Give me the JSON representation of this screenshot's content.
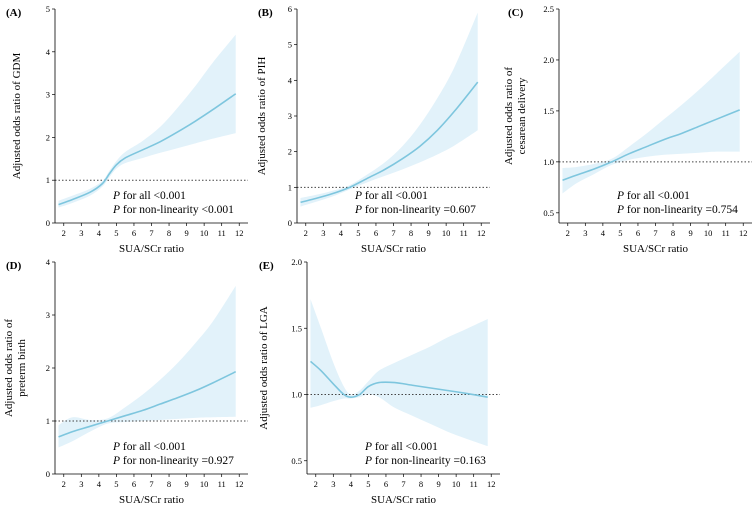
{
  "figure": {
    "curve_color": "#7ec6de",
    "band_color": "#e2f2fa",
    "ref_color": "#444444"
  },
  "chart_data": [
    {
      "id": "A",
      "panel_label": "(A)",
      "type": "line",
      "ylabel": "Adjusted odds ratio of GDM",
      "ylabel_lines": [
        "Adjusted odds ratio of GDM"
      ],
      "xlabel": "SUA/SCr ratio",
      "xlim": [
        1.5,
        12.5
      ],
      "ylim": [
        0,
        5
      ],
      "xticks": [
        2,
        3,
        4,
        5,
        6,
        7,
        8,
        9,
        10,
        11,
        12
      ],
      "yticks": [
        0,
        1,
        2,
        3,
        4,
        5
      ],
      "ytick_labels": [
        "0",
        "1",
        "2",
        "3",
        "4",
        "5"
      ],
      "reference_line": 1,
      "series": [
        {
          "name": "adjusted OR",
          "x": [
            1.7,
            2.5,
            3.5,
            4.2,
            4.6,
            5.0,
            5.5,
            6.5,
            7.5,
            8.5,
            9.5,
            10.5,
            11.8
          ],
          "y": [
            0.43,
            0.55,
            0.72,
            0.92,
            1.15,
            1.36,
            1.52,
            1.71,
            1.9,
            2.13,
            2.38,
            2.65,
            3.02
          ]
        },
        {
          "name": "95% CI upper",
          "x": [
            1.7,
            2.5,
            3.5,
            4.2,
            4.6,
            5.0,
            5.5,
            6.5,
            7.5,
            8.5,
            9.5,
            10.5,
            11.8
          ],
          "y": [
            0.52,
            0.64,
            0.8,
            0.98,
            1.22,
            1.45,
            1.66,
            1.92,
            2.25,
            2.7,
            3.2,
            3.75,
            4.4
          ]
        },
        {
          "name": "95% CI lower",
          "x": [
            1.7,
            2.5,
            3.5,
            4.2,
            4.6,
            5.0,
            5.5,
            6.5,
            7.5,
            8.5,
            9.5,
            10.5,
            11.8
          ],
          "y": [
            0.36,
            0.47,
            0.64,
            0.85,
            1.07,
            1.27,
            1.4,
            1.52,
            1.64,
            1.75,
            1.86,
            1.97,
            2.1
          ]
        }
      ],
      "annotations": [
        {
          "prefix": "P",
          "text": " for all <0.001"
        },
        {
          "prefix": "P",
          "text": " for non-linearity <0.001"
        }
      ]
    },
    {
      "id": "B",
      "panel_label": "(B)",
      "type": "line",
      "ylabel": "Adjusted odds ratio of PIH",
      "ylabel_lines": [
        "Adjusted odds ratio of PIH"
      ],
      "xlabel": "SUA/SCr ratio",
      "xlim": [
        1.5,
        12.5
      ],
      "ylim": [
        0,
        6
      ],
      "xticks": [
        2,
        3,
        4,
        5,
        6,
        7,
        8,
        9,
        10,
        11,
        12
      ],
      "yticks": [
        0,
        1,
        2,
        3,
        4,
        5,
        6
      ],
      "ytick_labels": [
        "0",
        "1",
        "2",
        "3",
        "4",
        "5",
        "6"
      ],
      "reference_line": 1,
      "series": [
        {
          "name": "adjusted OR",
          "x": [
            1.7,
            2.5,
            3.5,
            4.5,
            5.5,
            6.5,
            7.5,
            8.5,
            9.5,
            10.5,
            11.8
          ],
          "y": [
            0.58,
            0.68,
            0.82,
            1.0,
            1.25,
            1.5,
            1.8,
            2.15,
            2.6,
            3.15,
            3.95
          ]
        },
        {
          "name": "95% CI upper",
          "x": [
            1.7,
            2.5,
            3.5,
            4.5,
            5.5,
            6.5,
            7.5,
            8.5,
            9.5,
            10.5,
            11.8
          ],
          "y": [
            0.7,
            0.78,
            0.9,
            1.06,
            1.36,
            1.7,
            2.15,
            2.75,
            3.5,
            4.4,
            5.9
          ]
        },
        {
          "name": "95% CI lower",
          "x": [
            1.7,
            2.5,
            3.5,
            4.5,
            5.5,
            6.5,
            7.5,
            8.5,
            9.5,
            10.5,
            11.8
          ],
          "y": [
            0.46,
            0.58,
            0.74,
            0.94,
            1.14,
            1.32,
            1.5,
            1.7,
            1.92,
            2.18,
            2.6
          ]
        }
      ],
      "annotations": [
        {
          "prefix": "P",
          "text": " for all <0.001"
        },
        {
          "prefix": "P",
          "text": " for non-linearity =0.607"
        }
      ]
    },
    {
      "id": "C",
      "panel_label": "(C)",
      "type": "line",
      "ylabel": "Adjusted odds ratio of cesarean delivery",
      "ylabel_lines": [
        "Adjusted odds ratio of",
        "cesarean delivery"
      ],
      "xlabel": "SUA/SCr ratio",
      "xlim": [
        1.5,
        12.5
      ],
      "ylim": [
        0.4,
        2.5
      ],
      "xticks": [
        2,
        3,
        4,
        5,
        6,
        7,
        8,
        9,
        10,
        11,
        12
      ],
      "yticks": [
        0.5,
        1.0,
        1.5,
        2.0,
        2.5
      ],
      "ytick_labels": [
        "0.5",
        "1.0",
        "1.5",
        "2.0",
        "2.5"
      ],
      "reference_line": 1,
      "series": [
        {
          "name": "adjusted OR",
          "x": [
            1.7,
            2.5,
            3.5,
            4.5,
            5.5,
            6.5,
            7.5,
            8.5,
            9.5,
            10.5,
            11.8
          ],
          "y": [
            0.82,
            0.87,
            0.93,
            1.0,
            1.08,
            1.15,
            1.22,
            1.28,
            1.35,
            1.42,
            1.51
          ]
        },
        {
          "name": "95% CI upper",
          "x": [
            1.7,
            2.5,
            3.5,
            4.5,
            5.5,
            6.5,
            7.5,
            8.5,
            9.5,
            10.5,
            11.8
          ],
          "y": [
            0.94,
            0.95,
            0.98,
            1.03,
            1.15,
            1.28,
            1.42,
            1.56,
            1.71,
            1.87,
            2.08
          ]
        },
        {
          "name": "95% CI lower",
          "x": [
            1.7,
            2.5,
            3.5,
            4.5,
            5.5,
            6.5,
            7.5,
            8.5,
            9.5,
            10.5,
            11.8
          ],
          "y": [
            0.69,
            0.79,
            0.88,
            0.97,
            1.02,
            1.05,
            1.07,
            1.08,
            1.09,
            1.1,
            1.1
          ]
        }
      ],
      "annotations": [
        {
          "prefix": "P",
          "text": " for all <0.001"
        },
        {
          "prefix": "P",
          "text": " for non-linearity =0.754"
        }
      ]
    },
    {
      "id": "D",
      "panel_label": "(D)",
      "type": "line",
      "ylabel": "Adjusted odds ratio of preterm birth",
      "ylabel_lines": [
        "Adjusted odds ratio of",
        "preterm birth"
      ],
      "xlabel": "SUA/SCr ratio",
      "xlim": [
        1.5,
        12.5
      ],
      "ylim": [
        0,
        4
      ],
      "xticks": [
        2,
        3,
        4,
        5,
        6,
        7,
        8,
        9,
        10,
        11,
        12
      ],
      "yticks": [
        0,
        1,
        2,
        3,
        4
      ],
      "ytick_labels": [
        "0",
        "1",
        "2",
        "3",
        "4"
      ],
      "reference_line": 1,
      "series": [
        {
          "name": "adjusted OR",
          "x": [
            1.7,
            2.5,
            3.5,
            4.5,
            5.5,
            6.5,
            7.5,
            8.5,
            9.5,
            10.5,
            11.8
          ],
          "y": [
            0.7,
            0.8,
            0.9,
            1.0,
            1.1,
            1.2,
            1.32,
            1.44,
            1.57,
            1.72,
            1.93
          ]
        },
        {
          "name": "95% CI upper",
          "x": [
            1.7,
            2.5,
            3.5,
            4.5,
            5.5,
            6.5,
            7.5,
            8.5,
            9.5,
            10.5,
            11.8
          ],
          "y": [
            0.92,
            1.07,
            1.02,
            1.05,
            1.26,
            1.5,
            1.78,
            2.1,
            2.47,
            2.88,
            3.55
          ]
        },
        {
          "name": "95% CI lower",
          "x": [
            1.7,
            2.5,
            3.5,
            4.5,
            5.5,
            6.5,
            7.5,
            8.5,
            9.5,
            10.5,
            11.8
          ],
          "y": [
            0.5,
            0.62,
            0.8,
            0.95,
            0.98,
            1.0,
            1.02,
            1.04,
            1.06,
            1.07,
            1.08
          ]
        }
      ],
      "annotations": [
        {
          "prefix": "P",
          "text": " for all <0.001"
        },
        {
          "prefix": "P",
          "text": " for non-linearity =0.927"
        }
      ]
    },
    {
      "id": "E",
      "panel_label": "(E)",
      "type": "line",
      "ylabel": "Adjusted odds ratio of LGA",
      "ylabel_lines": [
        "Adjusted odds ratio of LGA"
      ],
      "xlabel": "SUA/SCr ratio",
      "xlim": [
        1.5,
        12.5
      ],
      "ylim": [
        0.4,
        2.0
      ],
      "xticks": [
        2,
        3,
        4,
        5,
        6,
        7,
        8,
        9,
        10,
        11,
        12
      ],
      "yticks": [
        0.5,
        1.0,
        1.5,
        2.0
      ],
      "ytick_labels": [
        "0.5",
        "1.0",
        "1.5",
        "2.0"
      ],
      "reference_line": 1,
      "series": [
        {
          "name": "adjusted OR",
          "x": [
            1.7,
            2.3,
            3.0,
            3.6,
            4.0,
            4.5,
            5.0,
            5.6,
            6.5,
            7.5,
            8.5,
            9.5,
            10.5,
            11.8
          ],
          "y": [
            1.25,
            1.18,
            1.08,
            1.0,
            0.98,
            1.0,
            1.06,
            1.09,
            1.09,
            1.07,
            1.05,
            1.03,
            1.01,
            0.98
          ]
        },
        {
          "name": "95% CI upper",
          "x": [
            1.7,
            2.3,
            3.0,
            3.6,
            4.0,
            4.5,
            5.0,
            5.6,
            6.5,
            7.5,
            8.5,
            9.5,
            10.5,
            11.8
          ],
          "y": [
            1.72,
            1.5,
            1.24,
            1.06,
            1.0,
            1.03,
            1.1,
            1.18,
            1.24,
            1.3,
            1.36,
            1.43,
            1.49,
            1.57
          ]
        },
        {
          "name": "95% CI lower",
          "x": [
            1.7,
            2.3,
            3.0,
            3.6,
            4.0,
            4.5,
            5.0,
            5.6,
            6.5,
            7.5,
            8.5,
            9.5,
            10.5,
            11.8
          ],
          "y": [
            0.9,
            0.92,
            0.95,
            0.97,
            0.97,
            0.98,
            1.0,
            0.98,
            0.9,
            0.84,
            0.78,
            0.72,
            0.67,
            0.61
          ]
        }
      ],
      "annotations": [
        {
          "prefix": "P",
          "text": " for all <0.001"
        },
        {
          "prefix": "P",
          "text": " for non-linearity =0.163"
        }
      ]
    }
  ]
}
